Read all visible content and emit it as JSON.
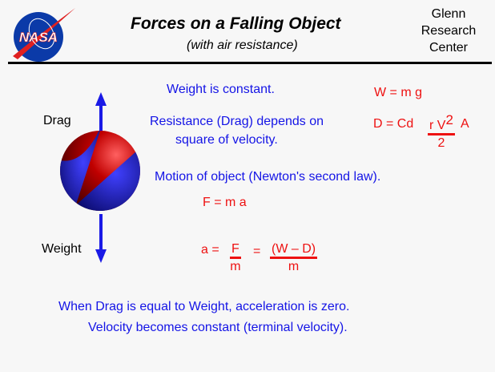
{
  "header": {
    "logo": "NASA",
    "title": "Forces on a Falling Object",
    "subtitle": "(with air resistance)",
    "center": [
      "Glenn",
      "Research",
      "Center"
    ]
  },
  "labels": {
    "drag": "Drag",
    "weight": "Weight"
  },
  "text": {
    "weight_constant": "Weight is constant.",
    "resistance_1": "Resistance (Drag) depends on",
    "resistance_2": "square of velocity.",
    "motion": "Motion of object (Newton's second law).",
    "conclusion_1": "When Drag is equal to Weight, acceleration is zero.",
    "conclusion_2": "Velocity becomes constant (terminal velocity)."
  },
  "equations": {
    "weight": "W = m g",
    "drag_lhs": "D = Cd",
    "drag_num": "r V",
    "drag_exp": "2",
    "drag_den": "2",
    "drag_tail": "A",
    "newton": "F = m a",
    "accel_lhs": "a =",
    "accel_num1": "F",
    "accel_den1": "m",
    "accel_eq": "=",
    "accel_num2": "(W – D)",
    "accel_den2": "m"
  },
  "colors": {
    "text_blue": "#1414e6",
    "equation_red": "#ee1111",
    "arrow_blue": "#1a1ae6"
  }
}
